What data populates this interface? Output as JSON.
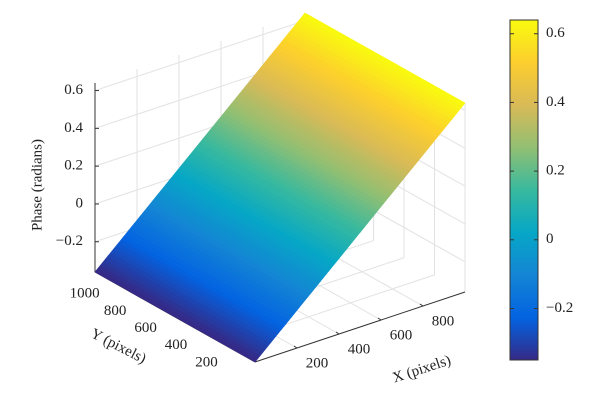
{
  "chart_data": {
    "type": "surface",
    "xlabel": "X (pixels)",
    "ylabel": "Y (pixels)",
    "zlabel": "Phase (radians)",
    "x": [
      0,
      1000
    ],
    "y": [
      0,
      1050
    ],
    "z": [
      [
        -0.36,
        0.64
      ],
      [
        -0.36,
        0.64
      ]
    ],
    "xlim": [
      0,
      1000
    ],
    "ylim": [
      0,
      1050
    ],
    "zlim": [
      -0.36,
      0.64
    ],
    "xticks": [
      200,
      400,
      600,
      800
    ],
    "yticks": [
      200,
      400,
      600,
      800,
      1000
    ],
    "zticks": [
      {
        "value": -0.2,
        "label": "−0.2"
      },
      0,
      0.2,
      0.4,
      0.6
    ],
    "clim": [
      -0.35,
      0.64
    ],
    "cticks": [
      {
        "value": -0.2,
        "label": "−0.2"
      },
      0,
      0.2,
      0.4,
      0.6
    ],
    "colormap": [
      "#352a87",
      "#0363e1",
      "#1485d4",
      "#06a7c6",
      "#38b99e",
      "#92bf73",
      "#d9ba56",
      "#fcce2e",
      "#f9fb0e"
    ],
    "grid": true
  }
}
